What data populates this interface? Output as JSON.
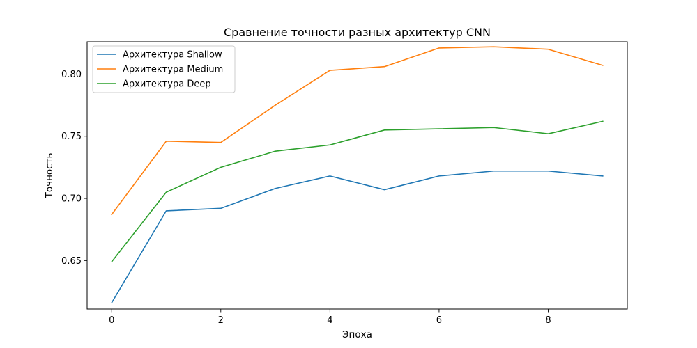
{
  "chart_data": {
    "type": "line",
    "title": "Сравнение точности разных архитектур CNN",
    "xlabel": "Эпоха",
    "ylabel": "Точность",
    "x": [
      0,
      1,
      2,
      3,
      4,
      5,
      6,
      7,
      8,
      9
    ],
    "xlim": [
      -0.45,
      9.45
    ],
    "ylim": [
      0.611,
      0.826
    ],
    "xticks": [
      0,
      2,
      4,
      6,
      8
    ],
    "yticks": [
      0.65,
      0.7,
      0.75,
      0.8
    ],
    "ytick_labels": [
      "0.65",
      "0.70",
      "0.75",
      "0.80"
    ],
    "grid": false,
    "legend_position": "top-left",
    "series": [
      {
        "name": "Архитектура Shallow",
        "color": "#1f77b4",
        "values": [
          0.616,
          0.69,
          0.692,
          0.708,
          0.718,
          0.707,
          0.718,
          0.722,
          0.722,
          0.718
        ]
      },
      {
        "name": "Архитектура Medium",
        "color": "#ff7f0e",
        "values": [
          0.687,
          0.746,
          0.745,
          0.775,
          0.803,
          0.806,
          0.821,
          0.822,
          0.82,
          0.807
        ]
      },
      {
        "name": "Архитектура Deep",
        "color": "#2ca02c",
        "values": [
          0.649,
          0.705,
          0.725,
          0.738,
          0.743,
          0.755,
          0.756,
          0.757,
          0.752,
          0.762
        ]
      }
    ]
  }
}
